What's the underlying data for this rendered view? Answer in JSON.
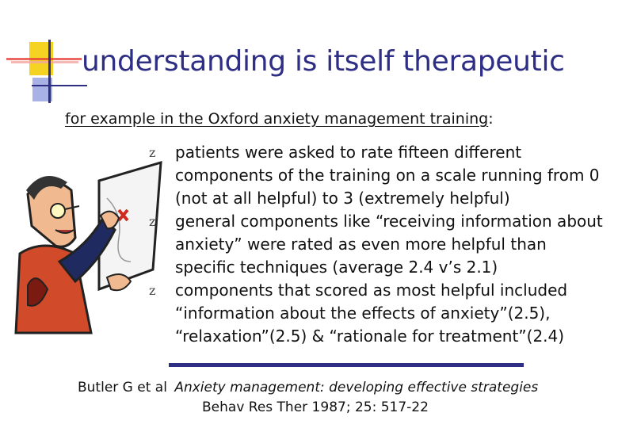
{
  "slide": {
    "title": "understanding is itself therapeutic",
    "intro": {
      "underlined": "for example in the Oxford anxiety management training",
      "suffix": ":"
    },
    "bullet_icon": "z-glyph-bullet-icon",
    "bullets": [
      "patients were asked to rate fifteen different components of the training on a scale running from 0 (not at all helpful) to 3 (extremely helpful)",
      "general components like “receiving information about anxiety” were rated as even more helpful than specific techniques (average 2.4 v’s 2.1)",
      "components that scored as most helpful included “information about the effects of anxiety”(2.5), “relaxation”(2.5) & “rationale for treatment”(2.4)"
    ],
    "reference": {
      "authors": "Butler G et al",
      "title": "Anxiety management: developing effective strategies",
      "journal": "Behav Res Ther 1987; 25: 517-22"
    }
  },
  "colors": {
    "title": "#2e2e85",
    "rule": "#2e2e85",
    "deco_yellow": "#f5d322",
    "deco_red": "#e8413b",
    "deco_blue": "#3a4fc4"
  },
  "images": {
    "cartoon": "cartoon-man-holding-map-icon"
  }
}
